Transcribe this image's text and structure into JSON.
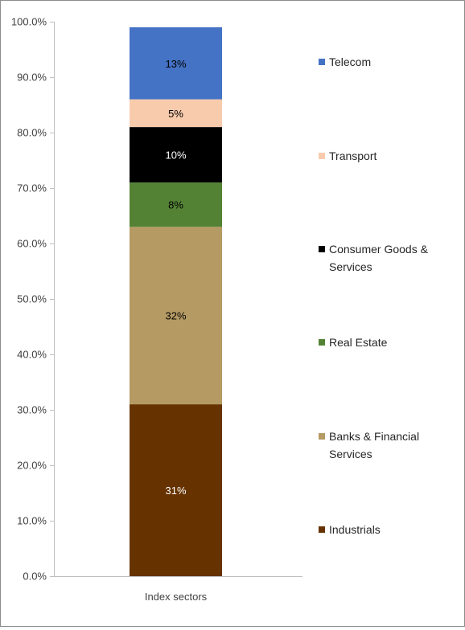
{
  "chart_data": {
    "type": "bar",
    "stacked": true,
    "categories": [
      "Index sectors"
    ],
    "ylim": [
      0,
      100
    ],
    "ytick_labels": [
      "0.0%",
      "10.0%",
      "20.0%",
      "30.0%",
      "40.0%",
      "50.0%",
      "60.0%",
      "70.0%",
      "80.0%",
      "90.0%",
      "100.0%"
    ],
    "grid": false,
    "legend_position": "right",
    "series": [
      {
        "name": "Industrials",
        "values": [
          31
        ],
        "label": "31%",
        "color": "#663300",
        "label_color": "#ffffff"
      },
      {
        "name": "Banks & Financial Services",
        "values": [
          32
        ],
        "label": "32%",
        "color": "#b59a64",
        "label_color": "#000000"
      },
      {
        "name": "Real Estate",
        "values": [
          8
        ],
        "label": "8%",
        "color": "#548235",
        "label_color": "#000000"
      },
      {
        "name": "Consumer Goods & Services",
        "values": [
          10
        ],
        "label": "10%",
        "color": "#000000",
        "label_color": "#ffffff"
      },
      {
        "name": "Transport",
        "values": [
          5
        ],
        "label": "5%",
        "color": "#f8cbad",
        "label_color": "#000000"
      },
      {
        "name": "Telecom",
        "values": [
          13
        ],
        "label": "13%",
        "color": "#4472c4",
        "label_color": "#000000"
      }
    ]
  }
}
